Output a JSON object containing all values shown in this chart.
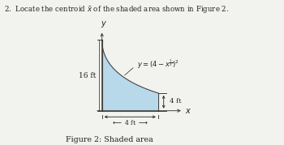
{
  "title": "Figure 2: Shaded area",
  "problem_text": "2.  Locate the centroid $\\bar{x}$ of the shaded area shown in Figure 2.",
  "curve_label": "$y = (4 - x^{\\frac{1}{2}})^2$",
  "label_16ft": "16 ft",
  "label_4ft_horiz": "4 ft",
  "label_4ft_vert": "4 ft",
  "shade_color": "#b8d9ea",
  "shade_edge_color": "#444444",
  "bg_color": "#f2f2ee",
  "text_color": "#222222"
}
